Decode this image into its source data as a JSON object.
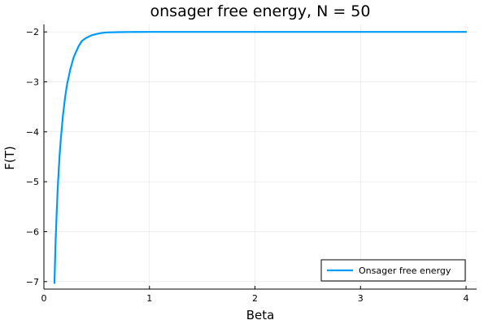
{
  "chart_data": {
    "type": "line",
    "title": "onsager free energy, N = 50",
    "xlabel": "Beta",
    "ylabel": "F(T)",
    "xlim": [
      0,
      4.1
    ],
    "ylim": [
      -7.15,
      -1.85
    ],
    "xticks": [
      0,
      1,
      2,
      3,
      4
    ],
    "xtick_labels": [
      "0",
      "1",
      "2",
      "3",
      "4"
    ],
    "yticks": [
      -7,
      -6,
      -5,
      -4,
      -3,
      -2
    ],
    "ytick_labels": [
      "−7",
      "−6",
      "−5",
      "−4",
      "−3",
      "−2"
    ],
    "grid": true,
    "legend_position": "bottom-right",
    "series": [
      {
        "name": "Onsager free energy",
        "color": "#009af9",
        "x": [
          0.1,
          0.11,
          0.12,
          0.13,
          0.14,
          0.15,
          0.16,
          0.18,
          0.2,
          0.22,
          0.25,
          0.28,
          0.3,
          0.33,
          0.36,
          0.4,
          0.45,
          0.5,
          0.55,
          0.6,
          0.7,
          0.8,
          0.9,
          1.0,
          1.5,
          2.0,
          2.5,
          3.0,
          3.5,
          4.0
        ],
        "y": [
          -7.03,
          -6.24,
          -5.67,
          -5.17,
          -4.78,
          -4.43,
          -4.15,
          -3.68,
          -3.32,
          -3.04,
          -2.75,
          -2.52,
          -2.42,
          -2.28,
          -2.18,
          -2.12,
          -2.07,
          -2.04,
          -2.02,
          -2.01,
          -2.005,
          -2.002,
          -2.001,
          -2.0,
          -2.0,
          -2.0,
          -2.0,
          -2.0,
          -2.0,
          -2.0
        ]
      }
    ]
  }
}
